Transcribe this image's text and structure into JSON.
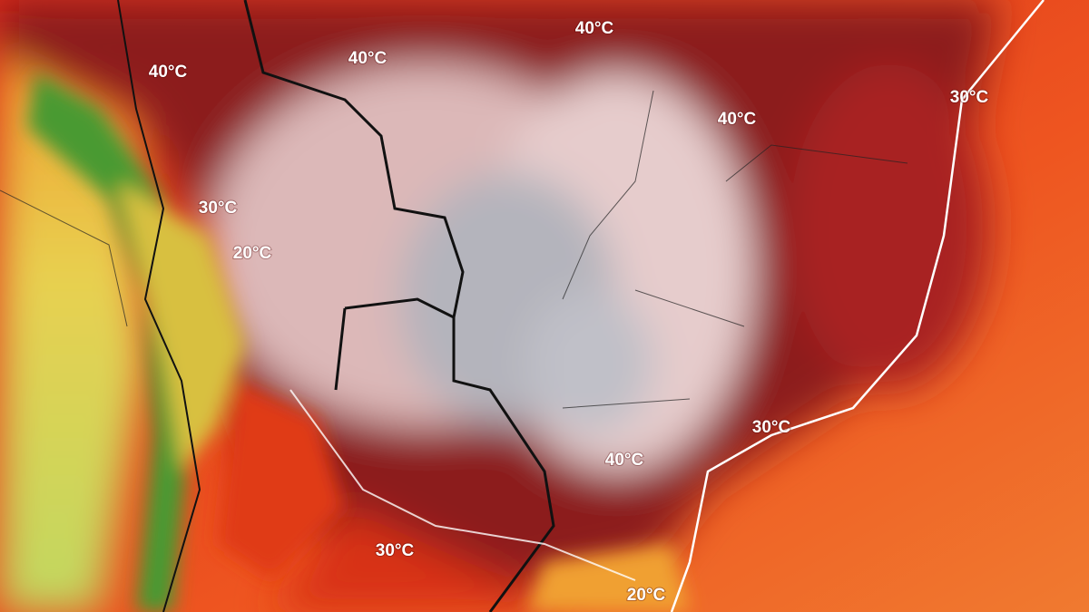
{
  "map": {
    "isotherm_labels": [
      "40°C",
      "40°C",
      "40°C",
      "40°C",
      "40°C",
      "30°C",
      "30°C",
      "30°C",
      "30°C",
      "20°C",
      "20°C"
    ]
  }
}
